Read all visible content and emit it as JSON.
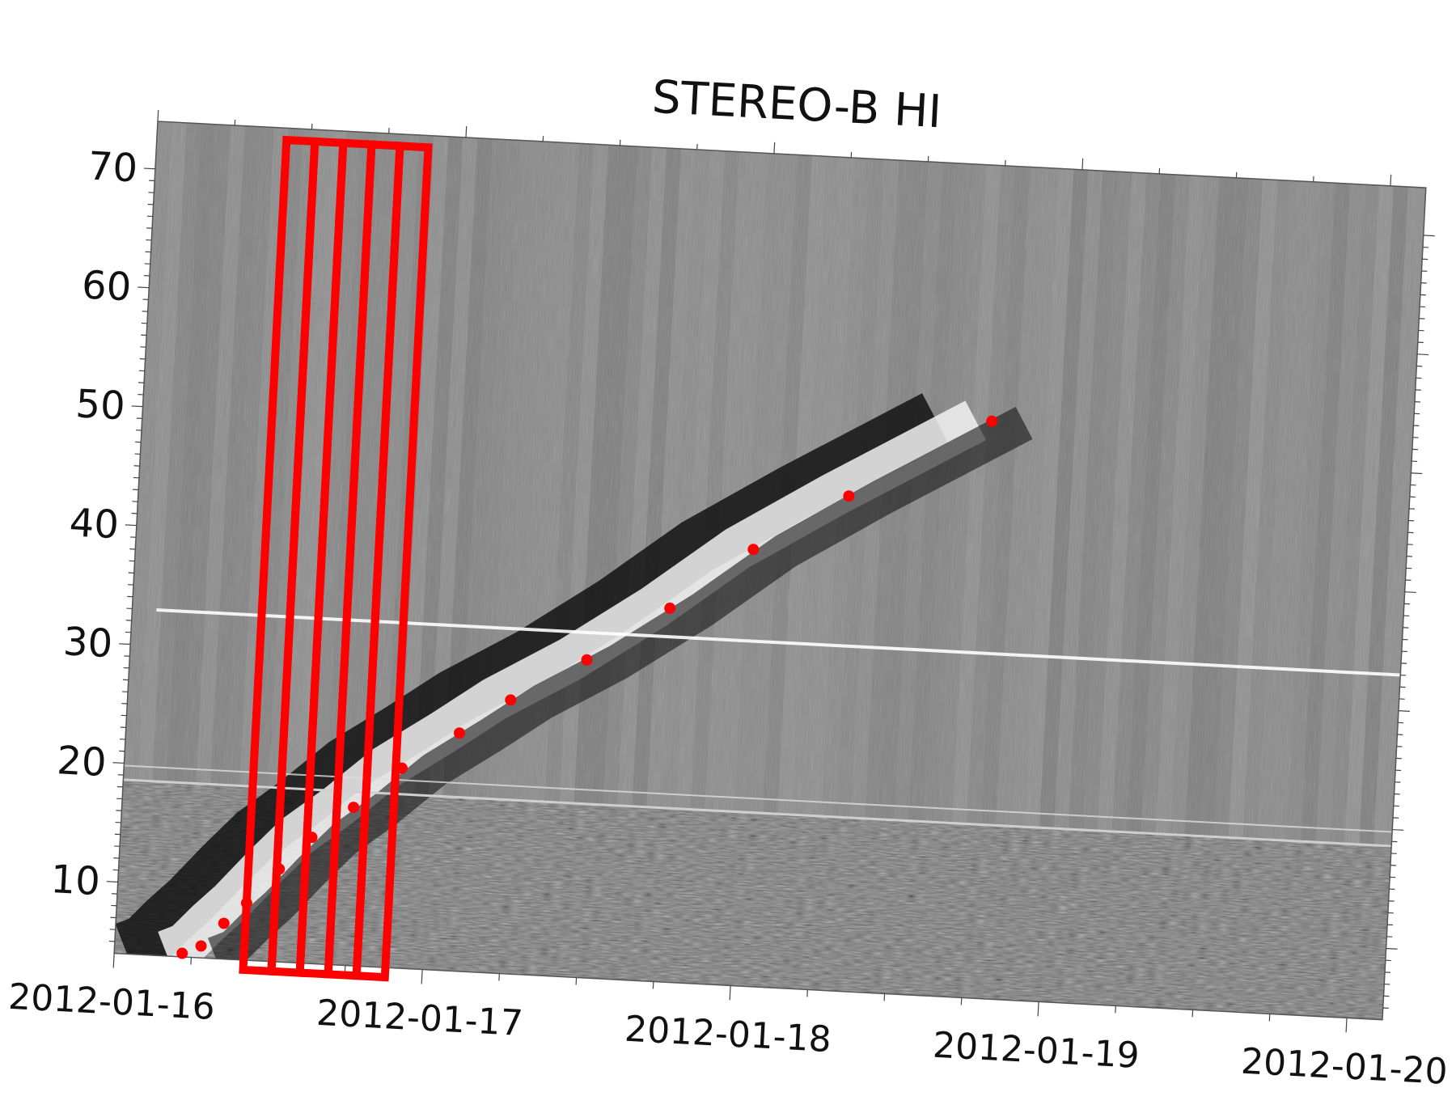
{
  "chart_data": {
    "type": "scatter",
    "title": "STEREO-B HI",
    "xlabel": "",
    "ylabel": "",
    "x_ticks": [
      "2012-01-16",
      "2012-01-17",
      "2012-01-18",
      "2012-01-19",
      "2012-01-20"
    ],
    "y_ticks": [
      10,
      20,
      30,
      40,
      50,
      60,
      70
    ],
    "xlim_days": [
      0,
      4
    ],
    "ylim": [
      4,
      74
    ],
    "background": "grayscale time-elongation map (J-map)",
    "series": [
      {
        "color": "#ff0000",
        "points_day_offset_from_2012-01-16": [
          [
            0.22,
            4.3
          ],
          [
            0.28,
            5.0
          ],
          [
            0.35,
            7.0
          ],
          [
            0.42,
            8.8
          ],
          [
            0.52,
            11.8
          ],
          [
            0.62,
            14.6
          ],
          [
            0.75,
            17.3
          ],
          [
            0.9,
            20.8
          ],
          [
            1.08,
            24.0
          ],
          [
            1.24,
            27.0
          ],
          [
            1.48,
            30.7
          ],
          [
            1.74,
            35.4
          ],
          [
            2.0,
            40.7
          ],
          [
            2.3,
            45.6
          ],
          [
            2.75,
            52.5
          ]
        ]
      }
    ],
    "highlight_boxes": {
      "color": "#ff0000",
      "count": 5,
      "x_range_days": [
        0.42,
        0.88
      ],
      "y_range": [
        4,
        73
      ]
    }
  }
}
